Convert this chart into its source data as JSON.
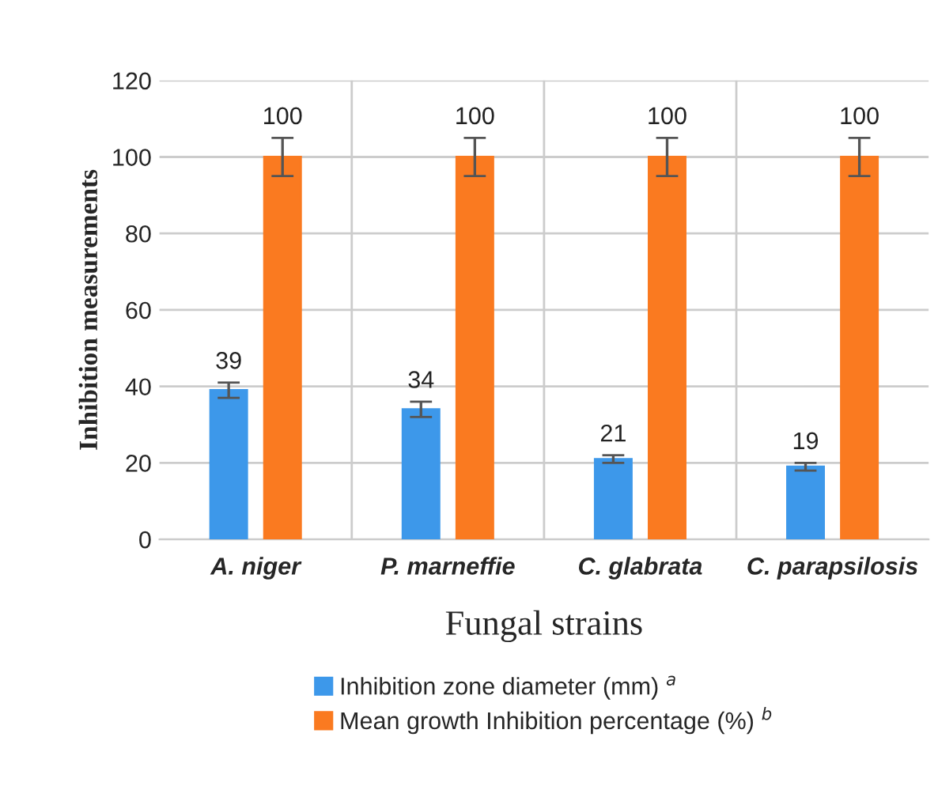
{
  "chart_data": {
    "type": "bar",
    "xlabel": "Fungal strains",
    "ylabel": "Inhibition measurements",
    "categories": [
      "A. niger",
      "P. marneffie",
      "C. glabrata",
      "C. parapsilosis"
    ],
    "series": [
      {
        "name": "Inhibition zone diameter (mm) $^{a}$",
        "color": "#3d98ea",
        "values": [
          39,
          34,
          21,
          19
        ],
        "errors": [
          2,
          2,
          1,
          1
        ]
      },
      {
        "name": "Mean growth Inhibition percentage (%) $^{b}$",
        "color": "#fa7a20",
        "values": [
          100,
          100,
          100,
          100
        ],
        "errors": [
          5,
          5,
          5,
          5
        ]
      }
    ],
    "ylim": [
      0,
      120
    ],
    "yticks": [
      0,
      20,
      40,
      60,
      80,
      100,
      120
    ],
    "grid": "y",
    "data_labels": true,
    "legend": "bottom"
  }
}
